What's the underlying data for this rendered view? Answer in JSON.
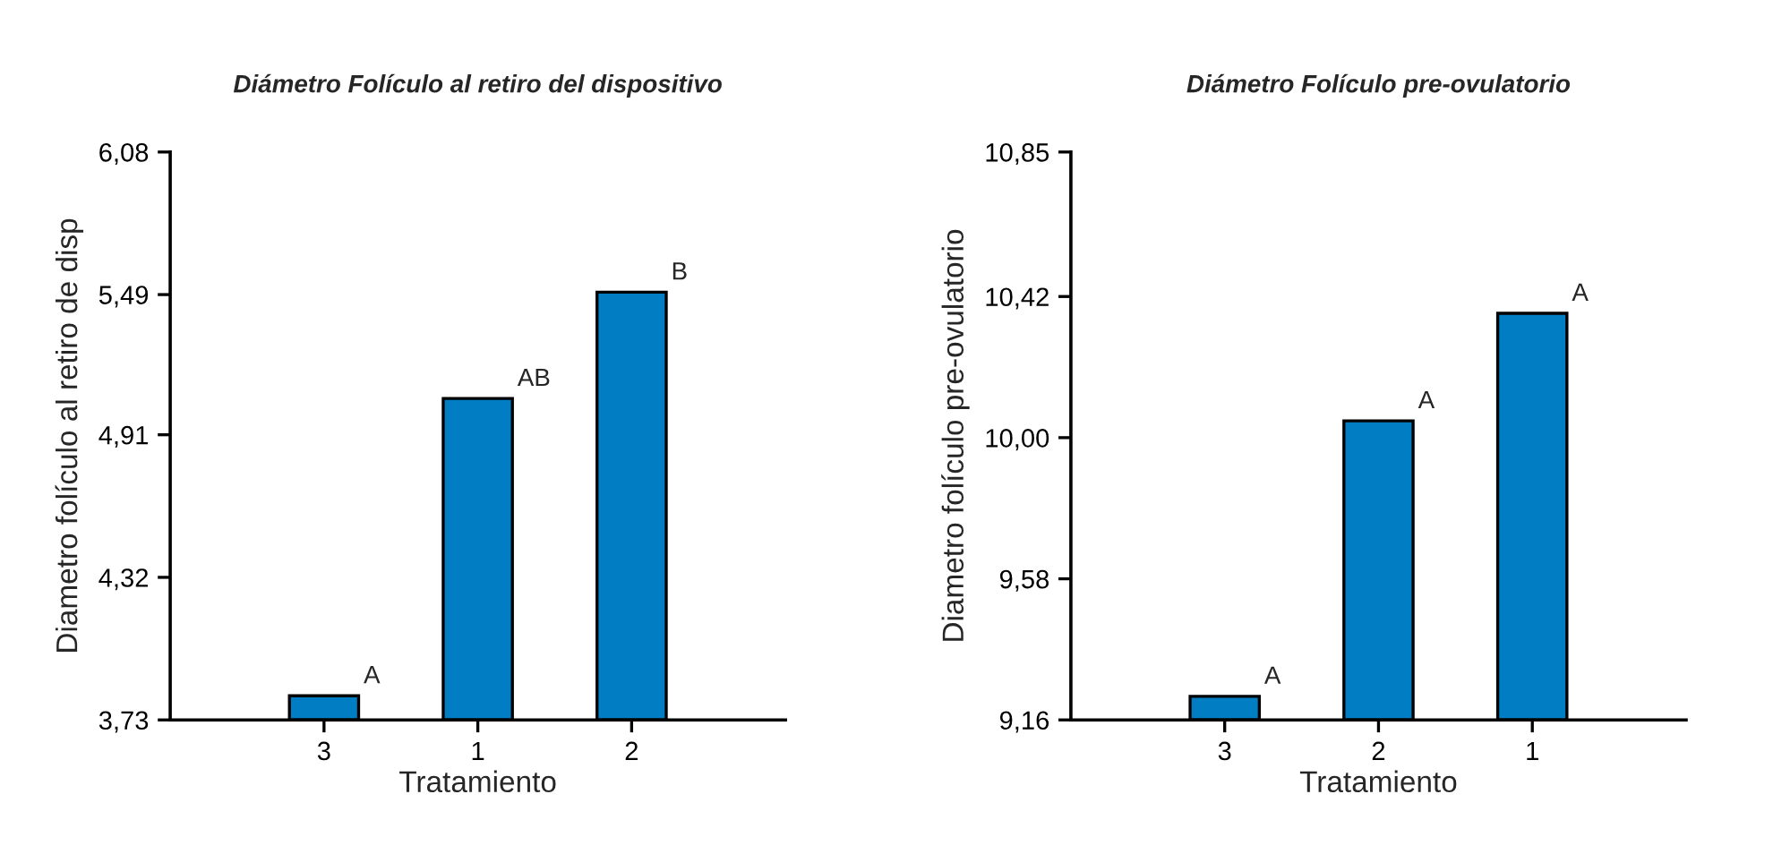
{
  "chart_data": [
    {
      "type": "bar",
      "title": "Diámetro Folículo al retiro del dispositivo",
      "xlabel": "Tratamiento",
      "ylabel": "Diametro folículo al retiro de disp",
      "categories": [
        "3",
        "1",
        "2"
      ],
      "values": [
        3.83,
        5.06,
        5.5
      ],
      "color": "#007dc3",
      "ylim": [
        3.73,
        6.08
      ],
      "yticks": [
        {
          "value": 3.73,
          "label": "3,73"
        },
        {
          "value": 4.32,
          "label": "4,32"
        },
        {
          "value": 4.91,
          "label": "4,91"
        },
        {
          "value": 5.49,
          "label": "5,49"
        },
        {
          "value": 6.08,
          "label": "6,08"
        }
      ],
      "grid": false,
      "annotations": [
        {
          "text": "A",
          "x": "3",
          "y": 3.83
        },
        {
          "text": "AB",
          "x": "1",
          "y": 5.06
        },
        {
          "text": "B",
          "x": "2",
          "y": 5.5
        }
      ]
    },
    {
      "type": "bar",
      "title": "Diámetro Folículo pre-ovulatorio",
      "xlabel": "Tratamiento",
      "ylabel": "Diametro folículo pre-ovulatorio",
      "categories": [
        "3",
        "2",
        "1"
      ],
      "values": [
        9.23,
        10.05,
        10.37
      ],
      "color": "#007dc3",
      "ylim": [
        9.16,
        10.85
      ],
      "yticks": [
        {
          "value": 9.16,
          "label": "9,16"
        },
        {
          "value": 9.58,
          "label": "9,58"
        },
        {
          "value": 10.0,
          "label": "10,00"
        },
        {
          "value": 10.42,
          "label": "10,42"
        },
        {
          "value": 10.85,
          "label": "10,85"
        }
      ],
      "grid": false,
      "annotations": [
        {
          "text": "A",
          "x": "3",
          "y": 9.23
        },
        {
          "text": "A",
          "x": "2",
          "y": 10.05
        },
        {
          "text": "A",
          "x": "1",
          "y": 10.37
        }
      ]
    }
  ]
}
